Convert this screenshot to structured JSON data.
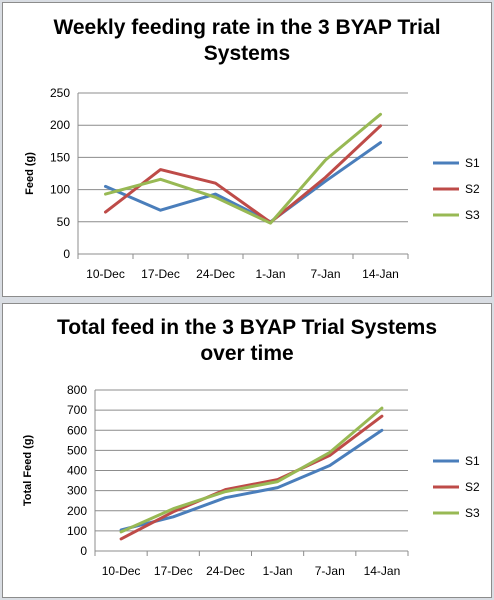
{
  "chart_data": [
    {
      "type": "line",
      "title": "Weekly feeding rate in the 3 BYAP Trial Systems",
      "ylabel": "Feed (g)",
      "xlabel": "",
      "categories": [
        "10-Dec",
        "17-Dec",
        "24-Dec",
        "1-Jan",
        "7-Jan",
        "14-Jan"
      ],
      "ylim": [
        0,
        250
      ],
      "yticks": [
        0,
        50,
        100,
        150,
        200,
        250
      ],
      "grid": true,
      "legend": "right",
      "series": [
        {
          "name": "S1",
          "color": "#4a7ebb",
          "values": [
            105,
            68,
            93,
            50,
            113,
            173
          ]
        },
        {
          "name": "S2",
          "color": "#be4b48",
          "values": [
            65,
            131,
            110,
            49,
            119,
            199
          ]
        },
        {
          "name": "S3",
          "color": "#98b954",
          "values": [
            93,
            116,
            88,
            48,
            146,
            217
          ]
        }
      ]
    },
    {
      "type": "line",
      "title": "Total feed in the 3 BYAP Trial Systems over time",
      "ylabel": "Total Feed (g)",
      "xlabel": "",
      "categories": [
        "10-Dec",
        "17-Dec",
        "24-Dec",
        "1-Jan",
        "7-Jan",
        "14-Jan"
      ],
      "ylim": [
        0,
        800
      ],
      "yticks": [
        0,
        100,
        200,
        300,
        400,
        500,
        600,
        700,
        800
      ],
      "grid": true,
      "legend": "right",
      "series": [
        {
          "name": "S1",
          "color": "#4a7ebb",
          "values": [
            105,
            170,
            265,
            315,
            425,
            600
          ]
        },
        {
          "name": "S2",
          "color": "#be4b48",
          "values": [
            60,
            195,
            305,
            355,
            475,
            670
          ]
        },
        {
          "name": "S3",
          "color": "#98b954",
          "values": [
            95,
            210,
            295,
            345,
            490,
            710
          ]
        }
      ]
    }
  ]
}
